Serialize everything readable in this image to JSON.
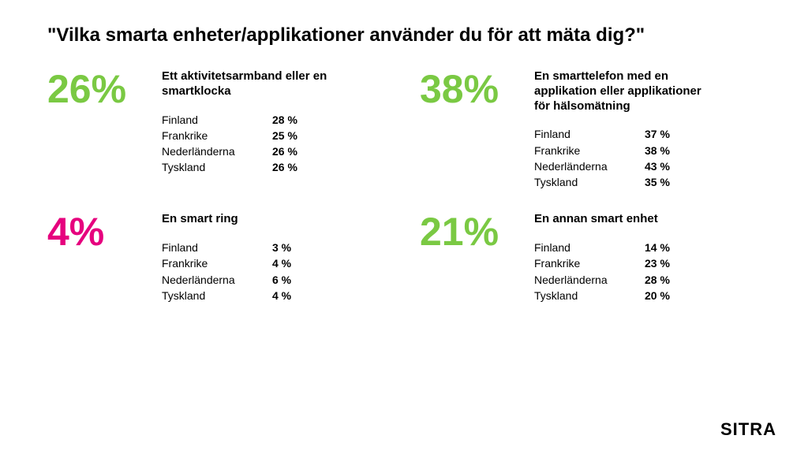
{
  "title": "\"Vilka smarta enheter/applikationer använder du för att mäta dig?\"",
  "title_fontsize": 24,
  "title_weight": 900,
  "colors": {
    "green": "#7ac943",
    "pink": "#e6007e",
    "text": "#000000",
    "background": "#ffffff"
  },
  "typography": {
    "pct_fontsize": 50,
    "pct_weight": 900,
    "label_fontsize": 15,
    "label_weight": 900,
    "row_fontsize": 14
  },
  "blocks": [
    {
      "pct": "26%",
      "pct_color": "green",
      "label": "Ett aktivitetsarmband eller en smartklocka",
      "rows": [
        {
          "country": "Finland",
          "val": "28 %"
        },
        {
          "country": "Frankrike",
          "val": "25 %"
        },
        {
          "country": "Nederländerna",
          "val": "26 %"
        },
        {
          "country": "Tyskland",
          "val": "26 %"
        }
      ]
    },
    {
      "pct": "38%",
      "pct_color": "green",
      "label": "En smarttelefon med en applikation eller applikationer för hälsomätning",
      "rows": [
        {
          "country": "Finland",
          "val": "37 %"
        },
        {
          "country": "Frankrike",
          "val": "38 %"
        },
        {
          "country": "Nederländerna",
          "val": "43 %"
        },
        {
          "country": "Tyskland",
          "val": "35 %"
        }
      ]
    },
    {
      "pct": "4%",
      "pct_color": "pink",
      "label": "En smart ring",
      "rows": [
        {
          "country": "Finland",
          "val": "3 %"
        },
        {
          "country": "Frankrike",
          "val": "4 %"
        },
        {
          "country": "Nederländerna",
          "val": "6 %"
        },
        {
          "country": "Tyskland",
          "val": "4 %"
        }
      ]
    },
    {
      "pct": "21%",
      "pct_color": "green",
      "label": "En annan smart enhet",
      "rows": [
        {
          "country": "Finland",
          "val": "14 %"
        },
        {
          "country": "Frankrike",
          "val": "23 %"
        },
        {
          "country": "Nederländerna",
          "val": "28 %"
        },
        {
          "country": "Tyskland",
          "val": "20 %"
        }
      ]
    }
  ],
  "logo": "SITRA"
}
